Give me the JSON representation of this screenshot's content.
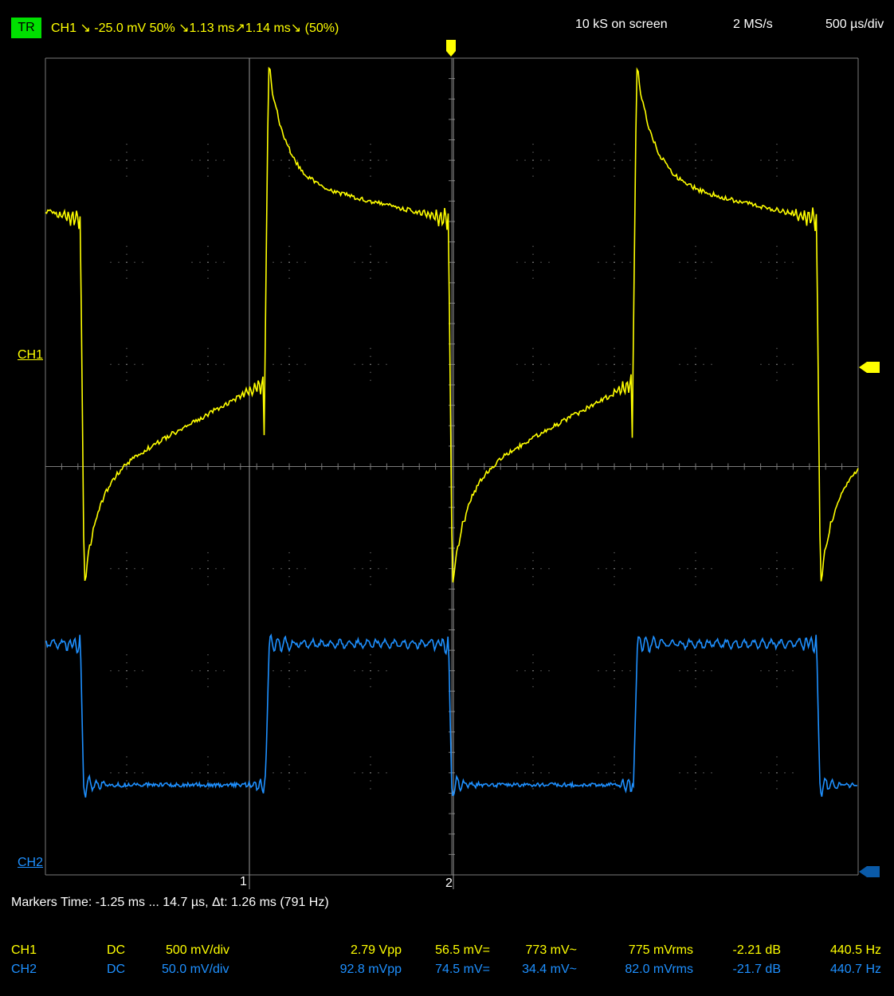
{
  "header": {
    "trigger_badge": "TR",
    "trigger_info": "CH1  ↘  -25.0 mV  50%  ↘1.13 ms↗1.14 ms↘ (50%)",
    "samples_on_screen": "10 kS on screen",
    "sample_rate": "2 MS/s",
    "timebase": "500 µs/div"
  },
  "graticule": {
    "ch1_label": "CH1",
    "ch2_label": "CH2",
    "marker1_label": "1",
    "marker2_label": "2"
  },
  "markers": {
    "text": "Markers  Time: -1.25 ms ... 14.7 µs,  Δt: 1.26 ms (791 Hz)"
  },
  "measurements": [
    {
      "channel": "CH1",
      "coupling": "DC",
      "scale": "500 mV/div",
      "vpp": "2.79 Vpp",
      "mean": "56.5 mV=",
      "ac": "773 mV~",
      "rms": "775 mVrms",
      "db": "-2.21 dB",
      "freq": "440.5 Hz"
    },
    {
      "channel": "CH2",
      "coupling": "DC",
      "scale": "50.0 mV/div",
      "vpp": "92.8 mVpp",
      "mean": "74.5 mV=",
      "ac": "34.4 mV~",
      "rms": "82.0 mVrms",
      "db": "-21.7 dB",
      "freq": "440.7 Hz"
    }
  ],
  "colors": {
    "ch1": "#ffff00",
    "ch2": "#1e90ff",
    "trigger_badge": "#00e000",
    "grid": "#808080"
  },
  "icons": {
    "trigger_position": "trigger-position-marker-icon",
    "ch1_level": "ch1-level-arrow-icon",
    "ch2_level": "ch2-level-arrow-icon"
  }
}
